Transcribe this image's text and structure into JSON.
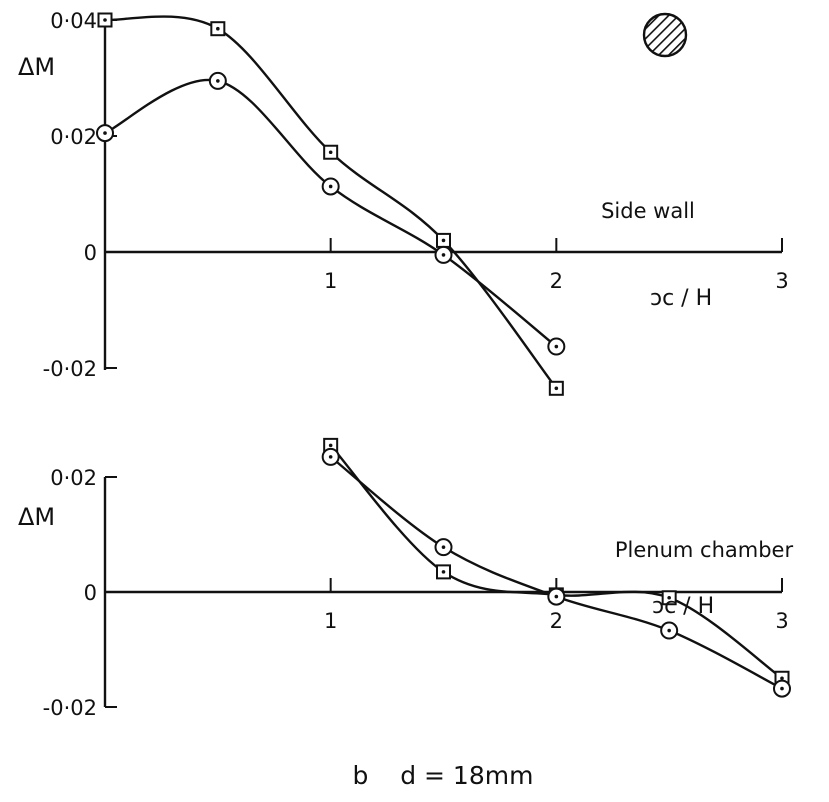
{
  "caption": "b    d = 18mm",
  "colors": {
    "ink": "#111111",
    "background": "#ffffff"
  },
  "icon": "hatched-circle-icon",
  "chart_data": [
    {
      "type": "line",
      "title": "",
      "annotation": "Side wall",
      "xlabel": "ɔc / H",
      "ylabel": "ΔM",
      "xlim": [
        0,
        3
      ],
      "ylim": [
        -0.02,
        0.04
      ],
      "x_ticks": [
        {
          "v": 1,
          "label": "1"
        },
        {
          "v": 2,
          "label": "2"
        },
        {
          "v": 3,
          "label": "3"
        }
      ],
      "y_ticks": [
        {
          "v": 0.04,
          "label": "0·04"
        },
        {
          "v": 0.02,
          "label": "0·02"
        },
        {
          "v": 0,
          "label": "0"
        },
        {
          "v": -0.02,
          "label": "-0·02"
        }
      ],
      "series": [
        {
          "marker": "square",
          "x": [
            0,
            0.5,
            1.0,
            1.5,
            2.0
          ],
          "y": [
            0.04,
            0.0385,
            0.0172,
            0.002,
            -0.0235
          ]
        },
        {
          "marker": "circle",
          "x": [
            0,
            0.5,
            1.0,
            1.5,
            2.0
          ],
          "y": [
            0.0205,
            0.0295,
            0.0113,
            -0.0005,
            -0.0163
          ]
        }
      ]
    },
    {
      "type": "line",
      "title": "",
      "annotation": "Plenum chamber",
      "xlabel": "ɔc / H",
      "ylabel": "ΔM",
      "xlim": [
        0,
        3
      ],
      "ylim": [
        -0.02,
        0.02
      ],
      "x_ticks": [
        {
          "v": 1,
          "label": "1"
        },
        {
          "v": 2,
          "label": "2"
        },
        {
          "v": 3,
          "label": "3"
        }
      ],
      "y_ticks": [
        {
          "v": 0.02,
          "label": "0·02"
        },
        {
          "v": 0,
          "label": "0"
        },
        {
          "v": -0.02,
          "label": "-0·02"
        }
      ],
      "series": [
        {
          "marker": "square",
          "x": [
            1.0,
            1.5,
            2.0,
            2.5,
            3.0
          ],
          "y": [
            0.0255,
            0.0035,
            -0.0005,
            -0.001,
            -0.015
          ]
        },
        {
          "marker": "circle",
          "x": [
            1.0,
            1.5,
            2.0,
            2.5,
            3.0
          ],
          "y": [
            0.0235,
            0.0078,
            -0.0008,
            -0.0067,
            -0.0168
          ]
        }
      ]
    }
  ]
}
